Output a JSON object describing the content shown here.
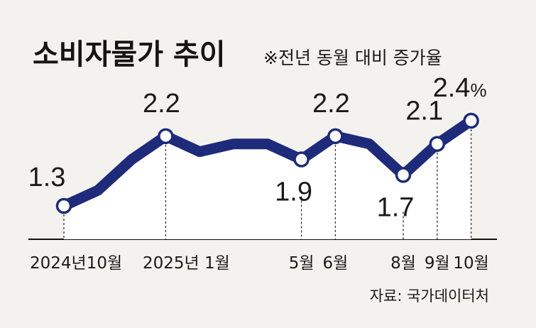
{
  "chart_data": {
    "type": "line",
    "title": "소비자물가 추이",
    "subtitle": "※전년 동월 대비 증가율",
    "source": "자료: 국가데이터처",
    "xlabel": "",
    "ylabel": "",
    "ylim": [
      1.0,
      2.6
    ],
    "grid": false,
    "legend": "none",
    "unit": "%",
    "line_color": "#1e2b7a",
    "marker_fill": "#ffffff",
    "points": [
      {
        "x": "2024-10",
        "y": 1.3,
        "label": "1.3",
        "tick": "2024년10월"
      },
      {
        "x": "2024-11",
        "y": 1.5,
        "label": "",
        "tick": ""
      },
      {
        "x": "2024-12",
        "y": 1.9,
        "label": "",
        "tick": ""
      },
      {
        "x": "2025-01",
        "y": 2.2,
        "label": "2.2",
        "tick": "2025년 1월"
      },
      {
        "x": "2025-02",
        "y": 2.0,
        "label": "",
        "tick": ""
      },
      {
        "x": "2025-03",
        "y": 2.1,
        "label": "",
        "tick": ""
      },
      {
        "x": "2025-04",
        "y": 2.1,
        "label": "",
        "tick": ""
      },
      {
        "x": "2025-05",
        "y": 1.9,
        "label": "1.9",
        "tick": "5월"
      },
      {
        "x": "2025-06",
        "y": 2.2,
        "label": "2.2",
        "tick": "6월"
      },
      {
        "x": "2025-07",
        "y": 2.1,
        "label": "",
        "tick": ""
      },
      {
        "x": "2025-08",
        "y": 1.7,
        "label": "1.7",
        "tick": "8월"
      },
      {
        "x": "2025-09",
        "y": 2.1,
        "label": "2.1",
        "tick": "9월"
      },
      {
        "x": "2025-10",
        "y": 2.4,
        "label": "2.4",
        "tick": "10월",
        "suffix": "%"
      }
    ]
  }
}
